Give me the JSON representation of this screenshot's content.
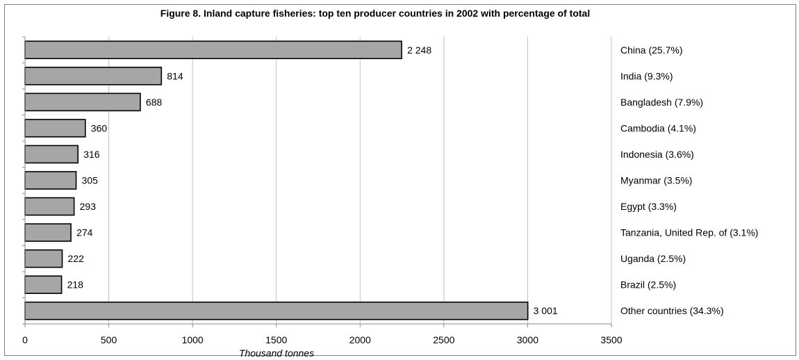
{
  "chart_data": {
    "type": "bar",
    "orientation": "horizontal",
    "title": "Figure 8.  Inland capture fisheries: top ten producer countries in 2002 with percentage of total",
    "xlabel": "Thousand tonnes",
    "ylabel": "",
    "xlim": [
      0,
      3500
    ],
    "xticks": [
      "0",
      "500",
      "1000",
      "1500",
      "2000",
      "2500",
      "3000",
      "3500"
    ],
    "grid": "vertical",
    "categories": [
      "China (25.7%)",
      "India (9.3%)",
      "Bangladesh (7.9%)",
      "Cambodia (4.1%)",
      "Indonesia (3.6%)",
      "Myanmar (3.5%)",
      "Egypt (3.3%)",
      "Tanzania, United Rep. of (3.1%)",
      "Uganda (2.5%)",
      "Brazil (2.5%)",
      "Other countries (34.3%)"
    ],
    "values": [
      2248,
      814,
      688,
      360,
      316,
      305,
      293,
      274,
      222,
      218,
      3001
    ],
    "value_labels": [
      "2 248",
      "814",
      "688",
      "360",
      "316",
      "305",
      "293",
      "274",
      "222",
      "218",
      "3 001"
    ],
    "colors": {
      "bar_fill": "#a6a6a6",
      "bar_stroke": "#000000",
      "grid": "#c0c0c0"
    }
  }
}
